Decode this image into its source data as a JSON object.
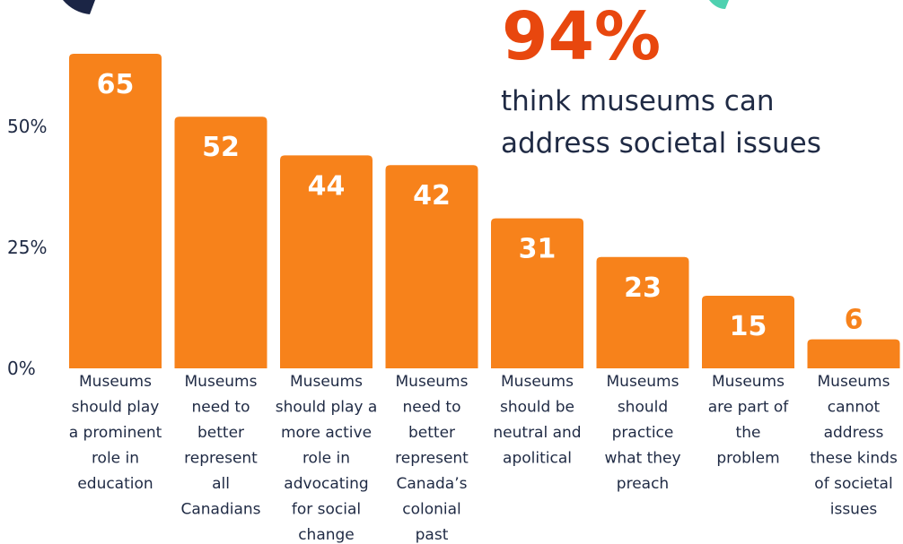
{
  "callout": {
    "percent": "94%",
    "line1": "think museums can",
    "line2": "address societal issues"
  },
  "colors": {
    "bar": "#f7821b",
    "bar_label_inside": "#ffffff",
    "bar_label_outside": "#f7821b",
    "callout_accent": "#e8470e",
    "text": "#1f2a44",
    "deco_navy": "#1b2545",
    "deco_teal": "#4fd1b0"
  },
  "chart_data": {
    "type": "bar",
    "title": "",
    "xlabel": "",
    "ylabel": "",
    "ylim": [
      0,
      65
    ],
    "y_ticks": [
      {
        "value": 0,
        "label": "0%"
      },
      {
        "value": 25,
        "label": "25%"
      },
      {
        "value": 50,
        "label": "50%"
      }
    ],
    "categories": [
      [
        "Museums",
        "should play",
        "a prominent",
        "role in",
        "education"
      ],
      [
        "Museums",
        "need to",
        "better",
        "represent",
        "all",
        "Canadians"
      ],
      [
        "Museums",
        "should play a",
        "more active",
        "role in",
        "advocating",
        "for social",
        "change"
      ],
      [
        "Museums",
        "need to",
        "better",
        "represent",
        "Canada’s",
        "colonial",
        "past"
      ],
      [
        "Museums",
        "should be",
        "neutral and",
        "apolitical"
      ],
      [
        "Museums",
        "should",
        "practice",
        "what they",
        "preach"
      ],
      [
        "Museums",
        "are part of",
        "the",
        "problem"
      ],
      [
        "Museums",
        "cannot",
        "address",
        "these kinds",
        "of societal",
        "issues"
      ]
    ],
    "values": [
      65,
      52,
      44,
      42,
      31,
      23,
      15,
      6
    ],
    "value_labels": [
      "65",
      "52",
      "44",
      "42",
      "31",
      "23",
      "15",
      "6"
    ]
  }
}
